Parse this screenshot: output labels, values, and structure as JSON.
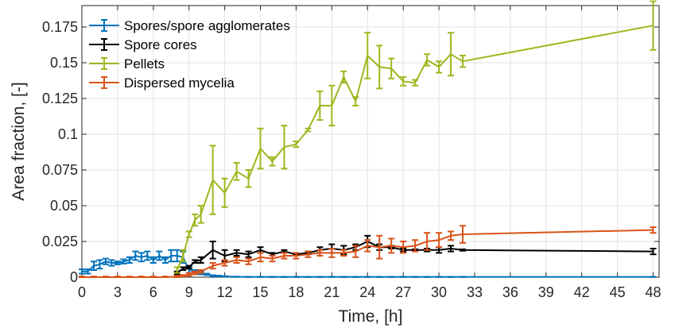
{
  "chart_data": {
    "type": "line",
    "xlabel": "Time, [h]",
    "ylabel": "Area fraction, [-]",
    "xlim": [
      0,
      48.5
    ],
    "ylim": [
      0,
      0.19
    ],
    "xticks": [
      0,
      3,
      6,
      9,
      12,
      15,
      18,
      21,
      24,
      27,
      30,
      33,
      36,
      39,
      42,
      45,
      48
    ],
    "xtick_labels": [
      "0",
      "3",
      "6",
      "9",
      "12",
      "15",
      "18",
      "21",
      "24",
      "27",
      "30",
      "33",
      "36",
      "39",
      "42",
      "45",
      "48"
    ],
    "yticks": [
      0,
      0.025,
      0.05,
      0.075,
      0.1,
      0.125,
      0.15,
      0.175
    ],
    "ytick_labels": [
      "0",
      "0.025",
      "0.05",
      "0.075",
      "0.1",
      "0.125",
      "0.15",
      "0.175"
    ],
    "grid": true,
    "legend_position": "top-left",
    "series": [
      {
        "name": "Spores/spore agglomerates",
        "color": "#0072BD",
        "x": [
          0,
          0.5,
          1,
          1.5,
          2,
          2.5,
          3,
          3.5,
          4,
          4.5,
          5,
          5.5,
          6,
          6.5,
          7,
          7.5,
          8,
          8.5,
          9,
          9.5,
          10,
          10.5,
          11,
          11.5,
          12,
          13,
          14,
          15,
          16,
          17,
          18,
          19,
          20,
          21,
          22,
          23,
          24,
          25,
          26,
          27,
          28,
          29,
          30,
          31,
          32,
          48
        ],
        "y": [
          0.004,
          0.004,
          0.008,
          0.009,
          0.011,
          0.01,
          0.01,
          0.011,
          0.012,
          0.015,
          0.014,
          0.015,
          0.012,
          0.015,
          0.012,
          0.015,
          0.015,
          0.014,
          0.005,
          0.004,
          0.003,
          0.002,
          0.001,
          0.0008,
          0.0005,
          0.0003,
          0.0002,
          0.0002,
          0.0002,
          0.0002,
          0.0002,
          0.0002,
          0.0002,
          0.0002,
          0.0002,
          0.0002,
          0.0002,
          0.0002,
          0.0002,
          0.0002,
          0.0002,
          0.0002,
          0.0002,
          0.0002,
          0.0002,
          0.0002
        ],
        "err": [
          0.0015,
          0.0015,
          0.003,
          0.003,
          0.002,
          0.002,
          0.001,
          0.0015,
          0.002,
          0.003,
          0.003,
          0.003,
          0.002,
          0.003,
          0.002,
          0.004,
          0.004,
          0.004,
          0.002,
          0.001,
          0.001,
          0.0005,
          0.0004,
          0.0003,
          0.0002,
          0.0001,
          0.0001,
          0.0001,
          0.0001,
          0.0001,
          0.0001,
          0.0001,
          0.0001,
          0.0001,
          0.0001,
          0.0001,
          0.0001,
          0.0001,
          0.0001,
          0.0001,
          0.0001,
          0.0001,
          0.0001,
          0.0001,
          0.0001,
          0.0001
        ]
      },
      {
        "name": "Spore cores",
        "color": "#000000",
        "x": [
          8,
          8.5,
          9,
          9.5,
          10,
          11,
          12,
          13,
          14,
          15,
          16,
          17,
          18,
          19,
          20,
          21,
          22,
          23,
          24,
          25,
          26,
          27,
          28,
          29,
          30,
          31,
          32,
          48
        ],
        "y": [
          0.003,
          0.006,
          0.007,
          0.011,
          0.012,
          0.019,
          0.015,
          0.017,
          0.016,
          0.019,
          0.016,
          0.018,
          0.016,
          0.017,
          0.019,
          0.02,
          0.019,
          0.021,
          0.025,
          0.021,
          0.021,
          0.019,
          0.019,
          0.019,
          0.019,
          0.02,
          0.019,
          0.018
        ],
        "err": [
          0.001,
          0.001,
          0.001,
          0.001,
          0.002,
          0.006,
          0.004,
          0.002,
          0.002,
          0.002,
          0.001,
          0.001,
          0.0005,
          0.001,
          0.002,
          0.003,
          0.003,
          0.002,
          0.004,
          0.002,
          0.001,
          0.001,
          0.0005,
          0.001,
          0.002,
          0.002,
          0.0005,
          0.002
        ]
      },
      {
        "name": "Pellets",
        "color": "#A2B51E",
        "x": [
          8,
          8.5,
          9,
          9.5,
          10,
          11,
          12,
          13,
          14,
          15,
          16,
          17,
          18,
          19,
          20,
          21,
          22,
          23,
          24,
          25,
          26,
          27,
          28,
          29,
          30,
          31,
          32,
          48
        ],
        "y": [
          0.005,
          0.015,
          0.03,
          0.04,
          0.044,
          0.068,
          0.059,
          0.074,
          0.069,
          0.09,
          0.081,
          0.091,
          0.093,
          0.103,
          0.12,
          0.12,
          0.14,
          0.123,
          0.155,
          0.147,
          0.146,
          0.137,
          0.136,
          0.152,
          0.147,
          0.156,
          0.151,
          0.176
        ],
        "err": [
          0.002,
          0.004,
          0.002,
          0.004,
          0.006,
          0.024,
          0.01,
          0.006,
          0.006,
          0.014,
          0.003,
          0.015,
          0.002,
          0.001,
          0.01,
          0.014,
          0.004,
          0.003,
          0.016,
          0.015,
          0.007,
          0.003,
          0.002,
          0.004,
          0.004,
          0.015,
          0.004,
          0.017
        ]
      },
      {
        "name": "Dispersed mycelia",
        "color": "#D95319",
        "x": [
          0,
          1,
          2,
          3,
          4,
          5,
          6,
          7,
          8,
          8.5,
          9,
          9.5,
          10,
          11,
          12,
          13,
          14,
          15,
          16,
          17,
          18,
          19,
          20,
          21,
          22,
          23,
          24,
          25,
          26,
          27,
          28,
          29,
          30,
          31,
          32,
          48
        ],
        "y": [
          0,
          0,
          0,
          0,
          0,
          0,
          0,
          0,
          0.0005,
          0.001,
          0.002,
          0.003,
          0.004,
          0.008,
          0.01,
          0.012,
          0.011,
          0.014,
          0.013,
          0.015,
          0.015,
          0.016,
          0.017,
          0.017,
          0.017,
          0.018,
          0.022,
          0.021,
          0.022,
          0.021,
          0.022,
          0.025,
          0.026,
          0.029,
          0.03,
          0.033
        ],
        "err": [
          0.0005,
          0.0005,
          0.0005,
          0.0005,
          0.0005,
          0.0005,
          0.0005,
          0.0005,
          0.0005,
          0.0005,
          0.001,
          0.001,
          0.001,
          0.002,
          0.002,
          0.002,
          0.002,
          0.003,
          0.002,
          0.002,
          0.002,
          0.002,
          0.002,
          0.003,
          0.002,
          0.004,
          0.004,
          0.008,
          0.005,
          0.004,
          0.004,
          0.006,
          0.005,
          0.003,
          0.006,
          0.002
        ]
      }
    ]
  }
}
